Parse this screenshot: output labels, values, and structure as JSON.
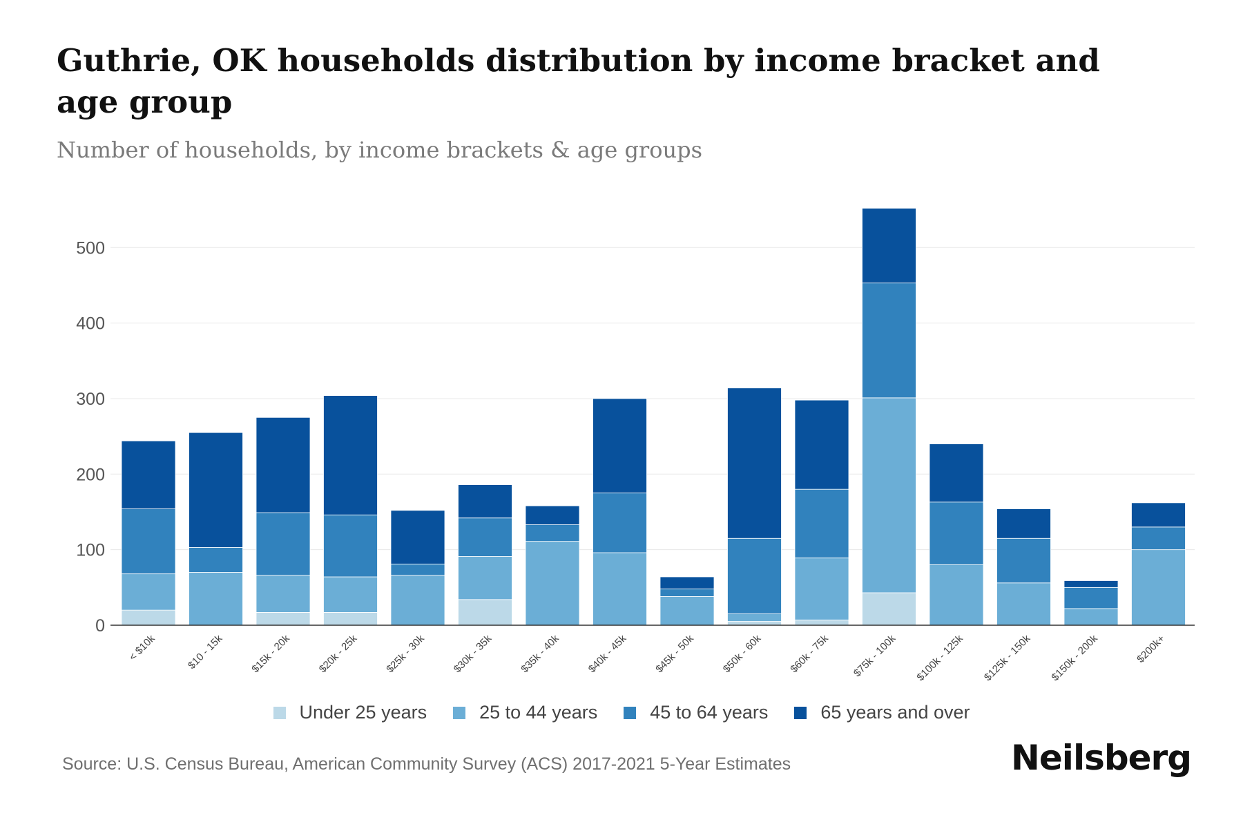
{
  "header": {
    "title": "Guthrie, OK households distribution by income bracket and age group",
    "subtitle": "Number of households, by income brackets & age groups"
  },
  "footer": {
    "source": "Source: U.S. Census Bureau, American Community Survey (ACS) 2017-2021 5-Year Estimates",
    "brand": "Neilsberg"
  },
  "colors": {
    "under_25": "#bcd9e8",
    "age_25_44": "#6baed6",
    "age_45_64": "#3182bd",
    "age_65_plus": "#08519c"
  },
  "chart_data": {
    "type": "bar",
    "stacked": true,
    "title": "Guthrie, OK households distribution by income bracket and age group",
    "xlabel": "",
    "ylabel": "",
    "ylim": [
      0,
      550
    ],
    "yticks": [
      0,
      100,
      200,
      300,
      400,
      500
    ],
    "grid": true,
    "legend_position": "bottom",
    "categories": [
      "< $10k",
      "$10 - 15k",
      "$15k - 20k",
      "$20k - 25k",
      "$25k - 30k",
      "$30k - 35k",
      "$35k - 40k",
      "$40k - 45k",
      "$45k - 50k",
      "$50k - 60k",
      "$60k - 75k",
      "$75k - 100k",
      "$100k - 125k",
      "$125k - 150k",
      "$150k - 200k",
      "$200k+"
    ],
    "series": [
      {
        "name": "Under 25 years",
        "color": "#bcd9e8",
        "values": [
          20,
          0,
          17,
          17,
          0,
          34,
          0,
          0,
          0,
          5,
          7,
          43,
          0,
          0,
          0,
          0
        ]
      },
      {
        "name": "25 to 44 years",
        "color": "#6baed6",
        "values": [
          48,
          70,
          49,
          47,
          66,
          57,
          111,
          96,
          38,
          10,
          82,
          258,
          80,
          56,
          22,
          100
        ]
      },
      {
        "name": "45 to 64 years",
        "color": "#3182bd",
        "values": [
          86,
          33,
          83,
          82,
          15,
          51,
          22,
          79,
          10,
          100,
          91,
          152,
          83,
          59,
          28,
          30
        ]
      },
      {
        "name": "65 years and over",
        "color": "#08519c",
        "values": [
          90,
          152,
          126,
          158,
          71,
          44,
          25,
          125,
          16,
          199,
          118,
          99,
          77,
          39,
          9,
          32
        ]
      }
    ]
  }
}
